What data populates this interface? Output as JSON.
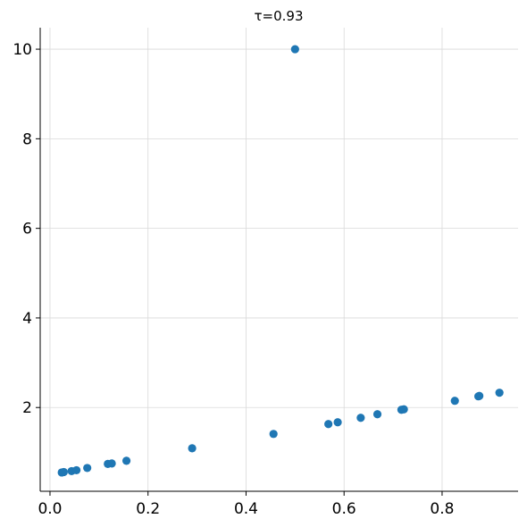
{
  "chart_data": {
    "type": "scatter",
    "title": "τ=0.93",
    "xlabel": "",
    "ylabel": "",
    "xlim": [
      -0.02,
      0.955
    ],
    "ylim": [
      0.13,
      10.48
    ],
    "xticks": [
      0.0,
      0.2,
      0.4,
      0.6,
      0.8
    ],
    "xtick_labels": [
      "0.0",
      "0.2",
      "0.4",
      "0.6",
      "0.8"
    ],
    "yticks": [
      2,
      4,
      6,
      8,
      10
    ],
    "ytick_labels": [
      "2",
      "4",
      "6",
      "8",
      "10"
    ],
    "grid": true,
    "marker_color": "#1f77b4",
    "points": [
      {
        "x": 0.024,
        "y": 0.55
      },
      {
        "x": 0.028,
        "y": 0.56
      },
      {
        "x": 0.044,
        "y": 0.58
      },
      {
        "x": 0.054,
        "y": 0.6
      },
      {
        "x": 0.076,
        "y": 0.65
      },
      {
        "x": 0.118,
        "y": 0.74
      },
      {
        "x": 0.126,
        "y": 0.75
      },
      {
        "x": 0.156,
        "y": 0.81
      },
      {
        "x": 0.29,
        "y": 1.09
      },
      {
        "x": 0.456,
        "y": 1.41
      },
      {
        "x": 0.5,
        "y": 10.0
      },
      {
        "x": 0.568,
        "y": 1.63
      },
      {
        "x": 0.587,
        "y": 1.67
      },
      {
        "x": 0.634,
        "y": 1.77
      },
      {
        "x": 0.668,
        "y": 1.85
      },
      {
        "x": 0.717,
        "y": 1.95
      },
      {
        "x": 0.722,
        "y": 1.96
      },
      {
        "x": 0.826,
        "y": 2.15
      },
      {
        "x": 0.874,
        "y": 2.25
      },
      {
        "x": 0.876,
        "y": 2.26
      },
      {
        "x": 0.917,
        "y": 2.33
      }
    ]
  }
}
